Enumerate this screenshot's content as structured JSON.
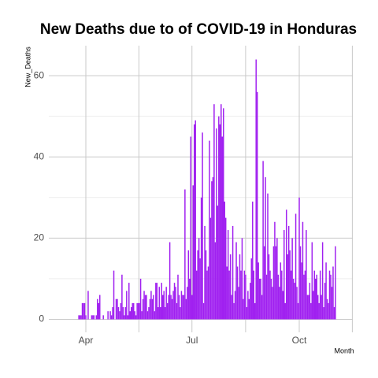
{
  "chart_data": {
    "type": "bar",
    "title": "New Deaths due to of COVID-19 in Honduras",
    "y_label": "New_Deaths",
    "x_label": "Month",
    "color": "#a020f0",
    "grid": true,
    "ylim": [
      -3.2,
      67.4
    ],
    "yticks": [
      0,
      20,
      40,
      60
    ],
    "categories": [
      null,
      null,
      null,
      null,
      null,
      null,
      "Apr",
      null,
      null,
      null,
      null,
      null,
      null,
      null,
      null,
      null,
      null,
      null,
      null,
      null,
      null,
      null,
      null,
      null,
      null,
      null,
      null,
      null,
      null,
      null,
      null,
      null,
      null,
      null,
      null,
      null,
      null,
      null,
      null,
      null,
      null,
      null,
      null,
      null,
      null,
      null,
      null,
      null,
      null,
      null,
      null,
      null,
      null,
      null,
      null,
      null,
      null,
      null,
      null,
      null,
      null,
      null,
      null,
      null,
      null,
      null,
      null,
      null,
      null,
      null,
      null,
      null,
      null,
      null,
      null,
      null,
      null,
      null,
      null,
      null,
      null,
      null,
      null,
      null,
      null,
      null,
      null,
      null,
      null,
      null,
      null,
      null,
      null,
      null,
      null,
      null,
      null,
      "Jul",
      null,
      null,
      null,
      null,
      null,
      null,
      null,
      null,
      null,
      null,
      null,
      null,
      null,
      null,
      null,
      null,
      null,
      null,
      null,
      null,
      null,
      null,
      null,
      null,
      null,
      null,
      null,
      null,
      null,
      null,
      null,
      null,
      null,
      null,
      null,
      null,
      null,
      null,
      null,
      null,
      null,
      null,
      null,
      null,
      null,
      null,
      null,
      null,
      null,
      null,
      null,
      null,
      null,
      null,
      null,
      null,
      null,
      null,
      null,
      null,
      null,
      null,
      null,
      null,
      null,
      null,
      null,
      null,
      null,
      null,
      null,
      null,
      null,
      null,
      null,
      null,
      null,
      null,
      null,
      null,
      null,
      null,
      null,
      null,
      null,
      null,
      null,
      null,
      null,
      null,
      null,
      "Oct",
      null,
      null,
      null,
      null,
      null,
      null,
      null,
      null,
      null,
      null,
      null,
      null,
      null,
      null,
      null,
      null,
      null,
      null,
      null,
      null,
      null,
      null,
      null,
      null,
      null,
      null,
      null,
      null,
      null,
      null,
      null
    ],
    "values": [
      1,
      1,
      1,
      4,
      4,
      4,
      1,
      0,
      7,
      0,
      0,
      1,
      1,
      1,
      0,
      1,
      5,
      4,
      6,
      0,
      0,
      1,
      0,
      0,
      0,
      2,
      0,
      2,
      1,
      3,
      12,
      0,
      5,
      5,
      3,
      2,
      4,
      11,
      3,
      1,
      3,
      7,
      1,
      9,
      2,
      3,
      4,
      4,
      2,
      1,
      4,
      4,
      4,
      10,
      2,
      5,
      7,
      6,
      6,
      2,
      3,
      5,
      7,
      5,
      6,
      2,
      9,
      9,
      3,
      8,
      3,
      9,
      6,
      7,
      3,
      8,
      4,
      6,
      19,
      6,
      5,
      7,
      9,
      8,
      4,
      11,
      6,
      3,
      7,
      6,
      6,
      32,
      5,
      8,
      17,
      10,
      45,
      6,
      33,
      48,
      49,
      12,
      17,
      20,
      15,
      30,
      46,
      4,
      23,
      17,
      12,
      13,
      44,
      25,
      34,
      35,
      53,
      19,
      47,
      28,
      50,
      48,
      53,
      45,
      52,
      29,
      25,
      13,
      22,
      12,
      16,
      6,
      23,
      4,
      7,
      19,
      13,
      8,
      16,
      12,
      20,
      5,
      12,
      11,
      3,
      7,
      5,
      9,
      15,
      29,
      12,
      4,
      64,
      56,
      14,
      10,
      10,
      6,
      39,
      18,
      35,
      11,
      31,
      16,
      12,
      10,
      8,
      18,
      24,
      18,
      20,
      11,
      8,
      14,
      12,
      7,
      22,
      4,
      27,
      16,
      23,
      17,
      12,
      20,
      10,
      9,
      26,
      8,
      4,
      30,
      18,
      14,
      24,
      11,
      12,
      22,
      6,
      6,
      9,
      4,
      19,
      7,
      12,
      10,
      11,
      6,
      4,
      12,
      6,
      19,
      3,
      9,
      14,
      5,
      4,
      12,
      11,
      8,
      13,
      3,
      18
    ]
  }
}
